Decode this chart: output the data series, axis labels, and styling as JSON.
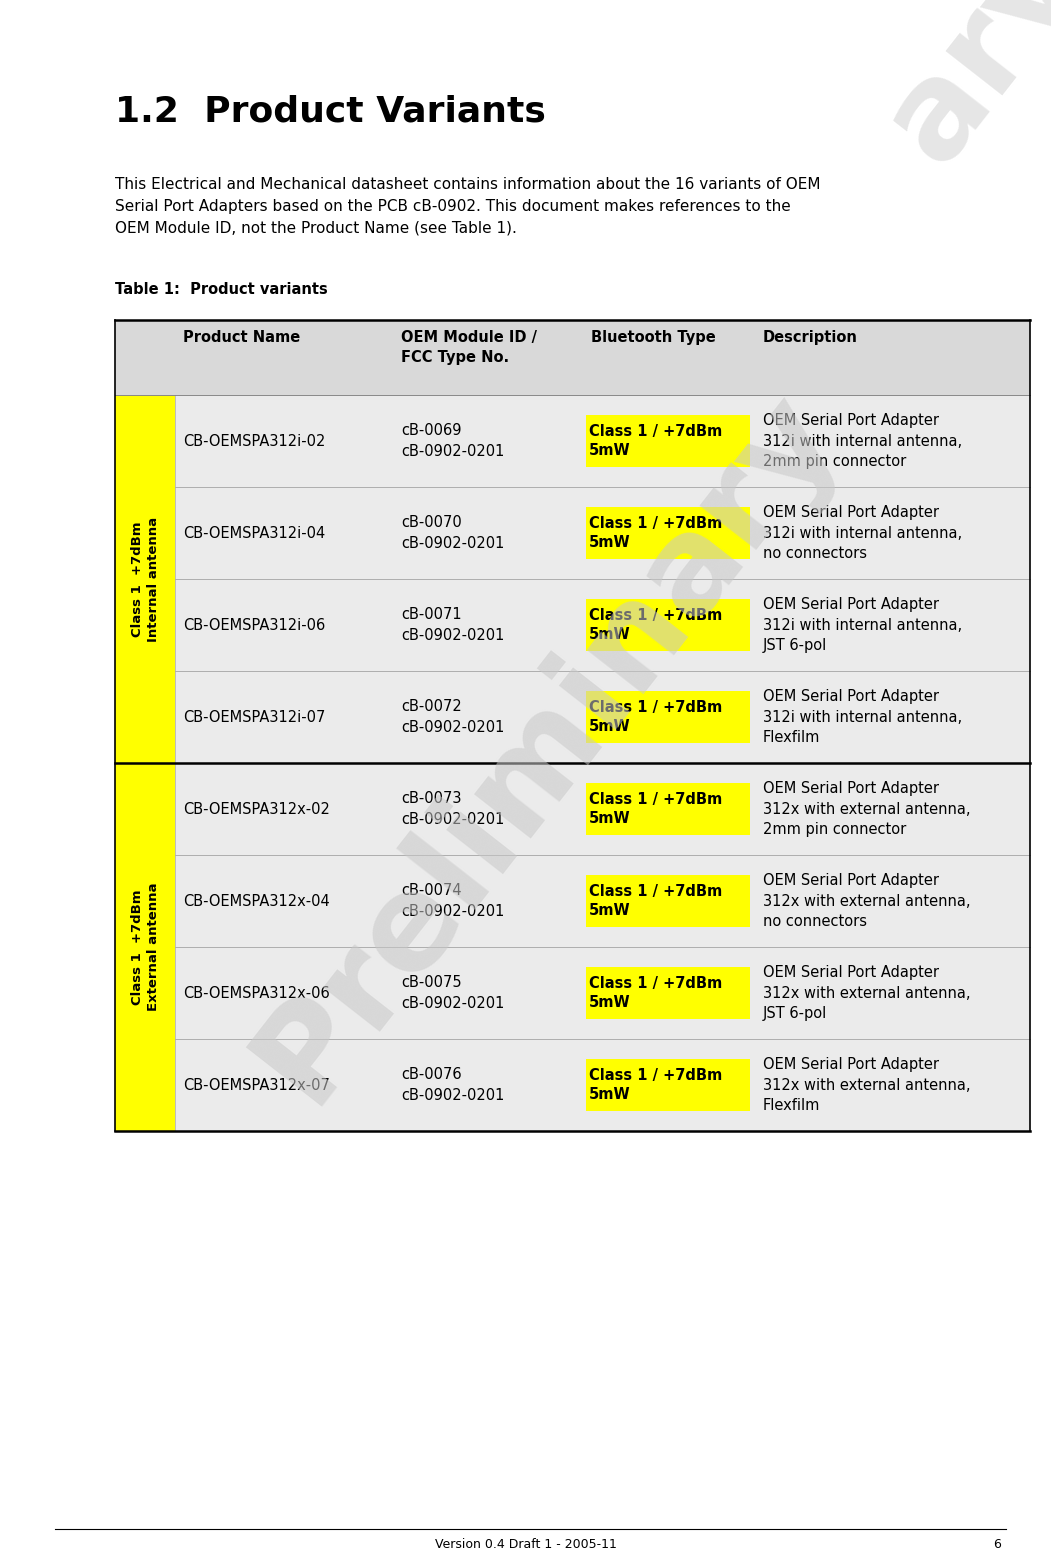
{
  "title": "1.2  Product Variants",
  "intro_text": "This Electrical and Mechanical datasheet contains information about the 16 variants of OEM\nSerial Port Adapters based on the PCB cB-0902. This document makes references to the\nOEM Module ID, not the Product Name (see Table 1).",
  "table_caption": "Table 1:  Product variants",
  "header_bg": "#d9d9d9",
  "row_bg_light": "#ebebeb",
  "yellow_bg": "#ffff00",
  "col_headers": [
    "Product Name",
    "OEM Module ID /\nFCC Type No.",
    "Bluetooth Type",
    "Description"
  ],
  "group1_label": "Class 1  +7dBm\nInternal antenna",
  "group2_label": "Class 1  +7dBm\nExternal antenna",
  "rows": [
    {
      "product": "CB-OEMSPA312i-02",
      "oem_id": "cB-0069\ncB-0902-0201",
      "bt_type": "Class 1 / +7dBm\n5mW",
      "desc": "OEM Serial Port Adapter\n312i with internal antenna,\n2mm pin connector",
      "group": 1
    },
    {
      "product": "CB-OEMSPA312i-04",
      "oem_id": "cB-0070\ncB-0902-0201",
      "bt_type": "Class 1 / +7dBm\n5mW",
      "desc": "OEM Serial Port Adapter\n312i with internal antenna,\nno connectors",
      "group": 1
    },
    {
      "product": "CB-OEMSPA312i-06",
      "oem_id": "cB-0071\ncB-0902-0201",
      "bt_type": "Class 1 / +7dBm\n5mW",
      "desc": "OEM Serial Port Adapter\n312i with internal antenna,\nJST 6-pol",
      "group": 1
    },
    {
      "product": "CB-OEMSPA312i-07",
      "oem_id": "cB-0072\ncB-0902-0201",
      "bt_type": "Class 1 / +7dBm\n5mW",
      "desc": "OEM Serial Port Adapter\n312i with internal antenna,\nFlexfilm",
      "group": 1
    },
    {
      "product": "CB-OEMSPA312x-02",
      "oem_id": "cB-0073\ncB-0902-0201",
      "bt_type": "Class 1 / +7dBm\n5mW",
      "desc": "OEM Serial Port Adapter\n312x with external antenna,\n2mm pin connector",
      "group": 2
    },
    {
      "product": "CB-OEMSPA312x-04",
      "oem_id": "cB-0074\ncB-0902-0201",
      "bt_type": "Class 1 / +7dBm\n5mW",
      "desc": "OEM Serial Port Adapter\n312x with external antenna,\nno connectors",
      "group": 2
    },
    {
      "product": "CB-OEMSPA312x-06",
      "oem_id": "cB-0075\ncB-0902-0201",
      "bt_type": "Class 1 / +7dBm\n5mW",
      "desc": "OEM Serial Port Adapter\n312x with external antenna,\nJST 6-pol",
      "group": 2
    },
    {
      "product": "CB-OEMSPA312x-07",
      "oem_id": "cB-0076\ncB-0902-0201",
      "bt_type": "Class 1 / +7dBm\n5mW",
      "desc": "OEM Serial Port Adapter\n312x with external antenna,\nFlexfilm",
      "group": 2
    }
  ],
  "footer_text": "Version 0.4 Draft 1 - 2005-11",
  "footer_page": "6",
  "watermark_text": "Preliminary",
  "bg_color": "#ffffff",
  "fig_width": 10.51,
  "fig_height": 15.61,
  "dpi": 100
}
